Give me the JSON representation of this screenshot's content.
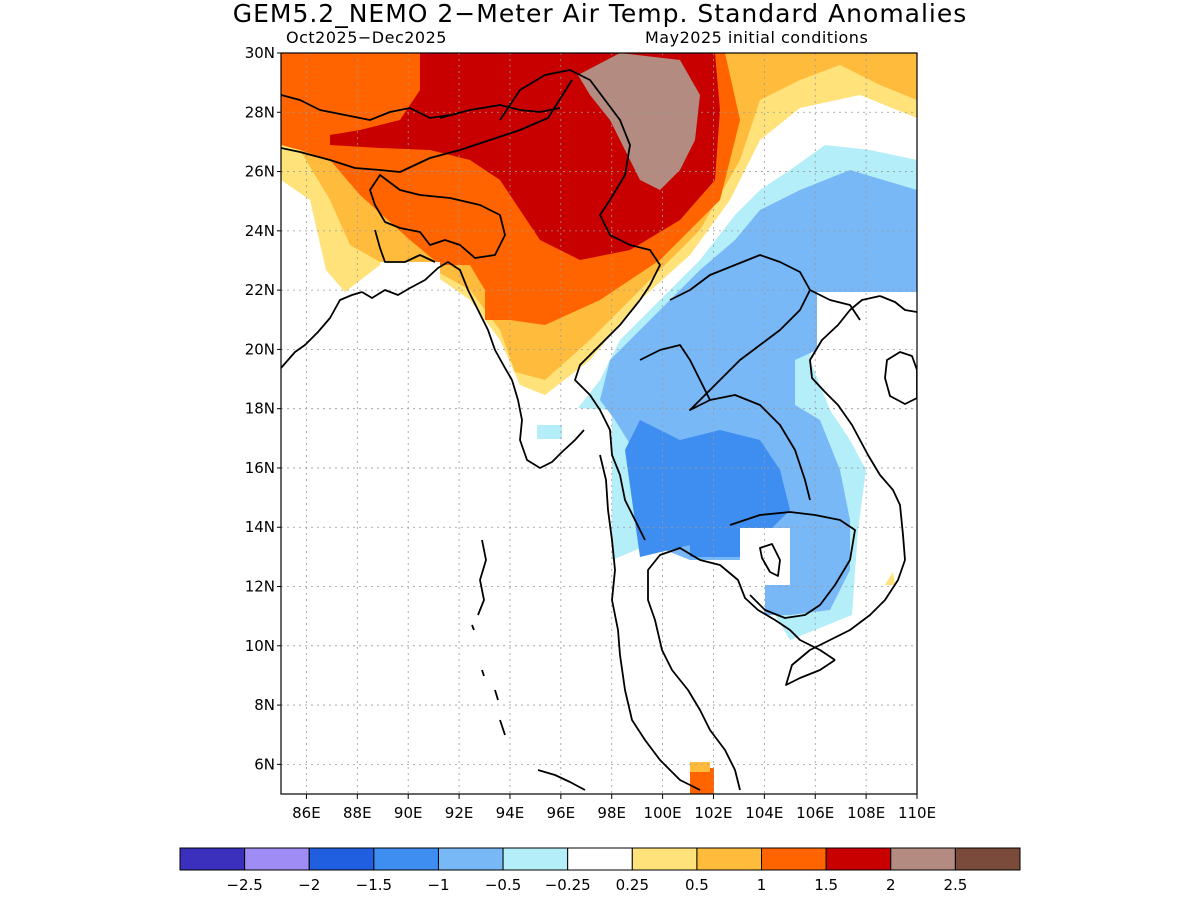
{
  "title": "GEM5.2_NEMO 2−Meter Air Temp. Standard Anomalies",
  "period": "Oct2025−Dec2025",
  "init": "May2025 initial conditions",
  "lat_labels": [
    "30N",
    "28N",
    "26N",
    "24N",
    "22N",
    "20N",
    "18N",
    "16N",
    "14N",
    "12N",
    "10N",
    "8N",
    "6N"
  ],
  "lon_labels": [
    "86E",
    "88E",
    "90E",
    "92E",
    "94E",
    "96E",
    "98E",
    "100E",
    "102E",
    "104E",
    "106E",
    "108E",
    "110E"
  ],
  "map_extent": {
    "lon": [
      85,
      110
    ],
    "lat": [
      5,
      30
    ]
  },
  "colorbar": {
    "colors": [
      "#3b2fbd",
      "#9f8cf5",
      "#1f5fe0",
      "#3d8ef0",
      "#78b8f7",
      "#b4eef8",
      "#ffffff",
      "#ffe37a",
      "#ffbb3c",
      "#ff6400",
      "#c80000",
      "#b48b80",
      "#7a4a3a"
    ],
    "labels": [
      "−2.5",
      "−2",
      "−1.5",
      "−1",
      "−0.5",
      "−0.25",
      "0.25",
      "0.5",
      "1",
      "1.5",
      "2",
      "2.5"
    ]
  },
  "regions": {
    "light_warm_color": "#ffe37a",
    "warm_color": "#ffbb3c",
    "orange_color": "#ff6400",
    "red_color": "#c80000",
    "brown_color": "#b48b80",
    "light_cold_color": "#b4eef8",
    "cold_color": "#78b8f7",
    "colder_color": "#3d8ef0"
  }
}
